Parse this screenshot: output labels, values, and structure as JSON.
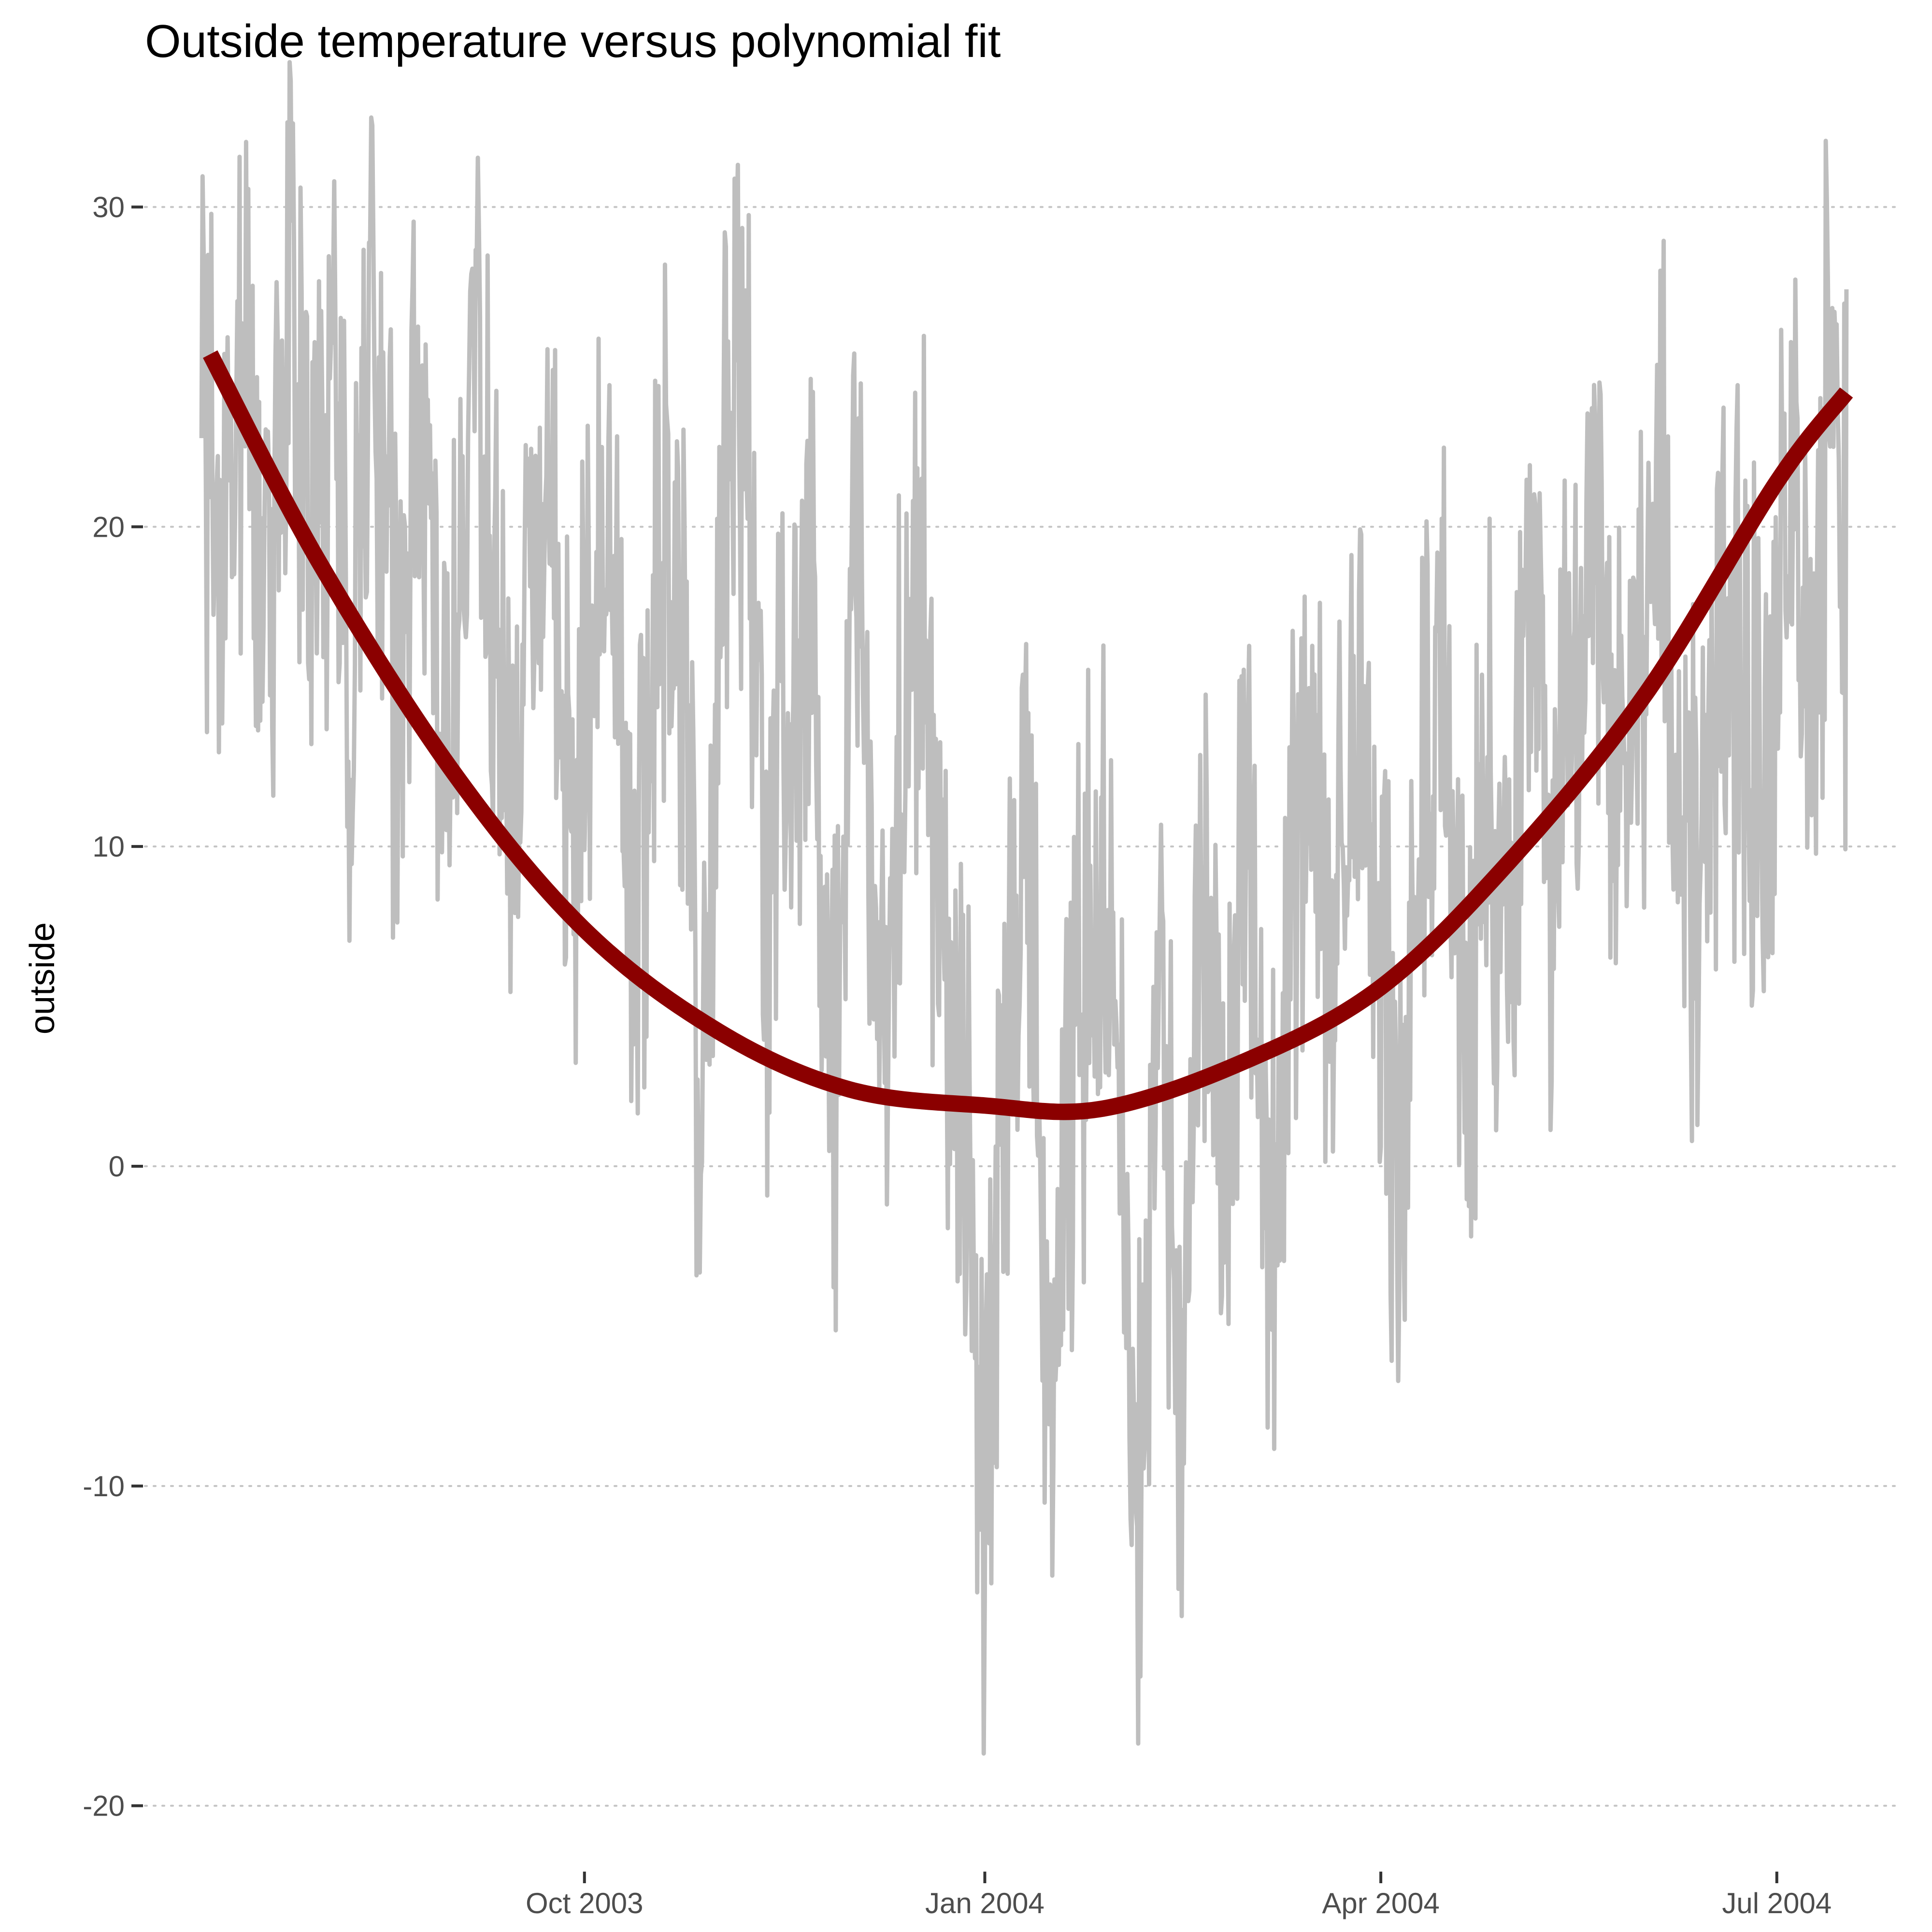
{
  "chart_data": {
    "type": "line",
    "title": "Outside temperature versus polynomial fit",
    "xlabel": "",
    "ylabel": "outside",
    "x_axis_type": "date",
    "xlim": [
      "2003-06-22",
      "2004-07-29"
    ],
    "ylim": [
      -22,
      33
    ],
    "yticks": [
      -20,
      -10,
      0,
      10,
      20,
      30
    ],
    "ytick_labels": [
      "-20",
      "-10",
      "0",
      "10",
      "20",
      "30"
    ],
    "xticks": [
      "2003-10-01",
      "2004-01-01",
      "2004-04-01",
      "2004-07-01"
    ],
    "xtick_labels": [
      "Oct 2003",
      "Jan 2004",
      "Apr 2004",
      "Jul 2004"
    ],
    "grid": "horizontal dotted",
    "legend": "none",
    "colors": {
      "raw": "#bebebe",
      "fit": "#8b0000",
      "grid": "#c4c4c4"
    },
    "series": [
      {
        "role": "observed",
        "x": [
          "2003-07-05",
          "2003-07-10",
          "2003-07-15",
          "2003-07-20",
          "2003-07-25",
          "2003-07-30",
          "2003-08-04",
          "2003-08-09",
          "2003-08-14",
          "2003-08-19",
          "2003-08-24",
          "2003-08-29",
          "2003-09-03",
          "2003-09-08",
          "2003-09-13",
          "2003-09-18",
          "2003-09-23",
          "2003-09-28",
          "2003-10-03",
          "2003-10-08",
          "2003-10-13",
          "2003-10-18",
          "2003-10-23",
          "2003-10-28",
          "2003-11-02",
          "2003-11-07",
          "2003-11-12",
          "2003-11-17",
          "2003-11-22",
          "2003-11-27",
          "2003-12-02",
          "2003-12-07",
          "2003-12-12",
          "2003-12-17",
          "2003-12-22",
          "2003-12-27",
          "2004-01-01",
          "2004-01-06",
          "2004-01-11",
          "2004-01-16",
          "2004-01-21",
          "2004-01-26",
          "2004-01-31",
          "2004-02-05",
          "2004-02-10",
          "2004-02-15",
          "2004-02-20",
          "2004-02-25",
          "2004-03-01",
          "2004-03-06",
          "2004-03-11",
          "2004-03-16",
          "2004-03-21",
          "2004-03-26",
          "2004-03-31",
          "2004-04-05",
          "2004-04-10",
          "2004-04-15",
          "2004-04-20",
          "2004-04-25",
          "2004-04-30",
          "2004-05-05",
          "2004-05-10",
          "2004-05-15",
          "2004-05-20",
          "2004-05-25",
          "2004-05-30",
          "2004-06-04",
          "2004-06-09",
          "2004-06-14",
          "2004-06-19",
          "2004-06-24",
          "2004-06-29",
          "2004-07-04",
          "2004-07-09",
          "2004-07-14",
          "2004-07-17"
        ],
        "y": [
          24,
          17,
          28,
          15,
          29,
          19,
          24,
          14,
          27,
          13,
          24,
          12,
          21,
          25,
          10,
          18,
          22,
          9,
          19,
          15,
          6,
          20,
          17,
          2,
          22,
          24,
          8,
          14,
          17,
          1,
          21,
          4,
          12,
          19,
          7,
          3,
          -12,
          5,
          12,
          -9,
          2,
          8,
          6,
          -12,
          6,
          -7,
          10,
          0,
          12,
          -4,
          8,
          13,
          4,
          16,
          9,
          -2,
          13,
          17,
          3,
          12,
          6,
          18,
          9,
          14,
          21,
          10,
          16,
          22,
          12,
          9,
          18,
          14,
          12,
          22,
          16,
          26,
          18
        ]
      },
      {
        "role": "polynomial-fit",
        "x": [
          "2003-07-07",
          "2003-08-01",
          "2003-09-01",
          "2003-10-01",
          "2003-11-01",
          "2003-12-01",
          "2004-01-01",
          "2004-01-28",
          "2004-03-01",
          "2004-04-01",
          "2004-05-01",
          "2004-06-01",
          "2004-07-01",
          "2004-07-17"
        ],
        "y": [
          25.4,
          18.9,
          12.3,
          7.4,
          4.2,
          2.4,
          1.9,
          1.8,
          3.3,
          5.6,
          9.6,
          14.8,
          21.4,
          24.2
        ]
      }
    ]
  }
}
